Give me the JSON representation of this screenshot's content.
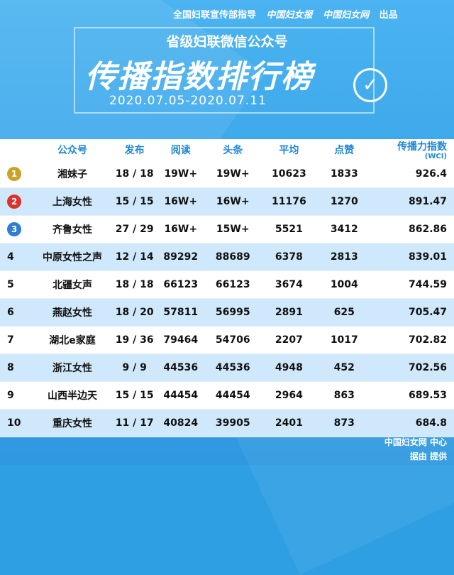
{
  "top": {
    "guidance": "全国妇联宣传部指导",
    "brand1": "中国妇女报",
    "brand2": "中国妇女网",
    "produce": "出品"
  },
  "header": {
    "subtitle": "省级妇联微信公众号",
    "title": "传播指数排行榜",
    "dates": "2020.07.05-2020.07.11"
  },
  "table": {
    "columns": [
      "",
      "公众号",
      "发布",
      "阅读",
      "头条",
      "平均",
      "点赞",
      "传播力指数"
    ],
    "wci": "(WCI)",
    "rows": [
      {
        "rank": "1",
        "name": "湘妹子",
        "publish": "18 / 18",
        "read": "19W+",
        "headline": "19W+",
        "avg": "10623",
        "like": "1833",
        "wci": "926.4"
      },
      {
        "rank": "2",
        "name": "上海女性",
        "publish": "15 / 15",
        "read": "16W+",
        "headline": "16W+",
        "avg": "11176",
        "like": "1270",
        "wci": "891.47"
      },
      {
        "rank": "3",
        "name": "齐鲁女性",
        "publish": "27 / 29",
        "read": "16W+",
        "headline": "15W+",
        "avg": "5521",
        "like": "3412",
        "wci": "862.86"
      },
      {
        "rank": "4",
        "name": "中原女性之声",
        "publish": "12 / 14",
        "read": "89292",
        "headline": "88689",
        "avg": "6378",
        "like": "2813",
        "wci": "839.01"
      },
      {
        "rank": "5",
        "name": "北疆女声",
        "publish": "18 / 18",
        "read": "66123",
        "headline": "66123",
        "avg": "3674",
        "like": "1004",
        "wci": "744.59"
      },
      {
        "rank": "6",
        "name": "燕赵女性",
        "publish": "18 / 20",
        "read": "57811",
        "headline": "56995",
        "avg": "2891",
        "like": "625",
        "wci": "705.47"
      },
      {
        "rank": "7",
        "name": "湖北e家庭",
        "publish": "19 / 36",
        "read": "79464",
        "headline": "54706",
        "avg": "2207",
        "like": "1017",
        "wci": "702.82"
      },
      {
        "rank": "8",
        "name": "浙江女性",
        "publish": "9 / 9",
        "read": "44536",
        "headline": "44536",
        "avg": "4948",
        "like": "452",
        "wci": "702.56"
      },
      {
        "rank": "9",
        "name": "山西半边天",
        "publish": "15 / 15",
        "read": "44454",
        "headline": "44454",
        "avg": "2964",
        "like": "863",
        "wci": "689.53"
      },
      {
        "rank": "10",
        "name": "重庆女性",
        "publish": "11 / 17",
        "read": "40824",
        "headline": "39905",
        "avg": "2401",
        "like": "873",
        "wci": "684.8"
      }
    ]
  },
  "footer": {
    "line1": "中国妇女网 中心",
    "line2": "据由 提供"
  },
  "colors": {
    "medal_gold": "#c9a227",
    "medal_red": "#d9332b",
    "medal_blue": "#2f7fd0"
  }
}
